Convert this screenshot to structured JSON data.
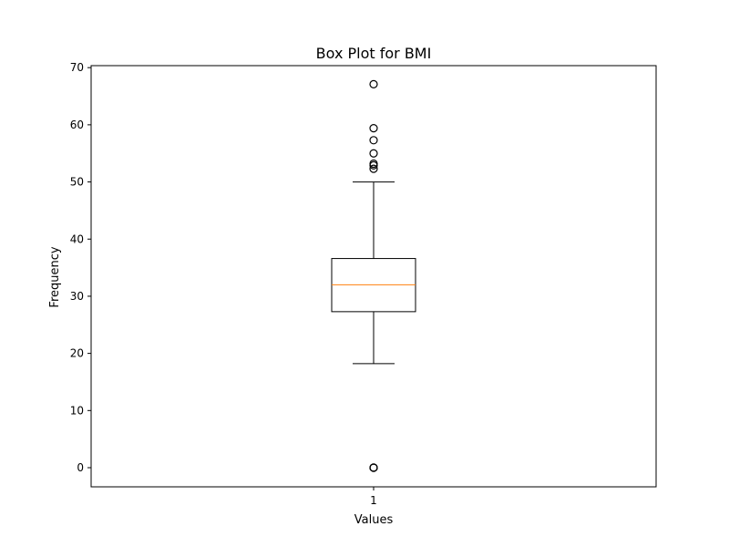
{
  "chart_data": {
    "type": "box",
    "title": "Box Plot for BMI",
    "xlabel": "Values",
    "ylabel": "Frequency",
    "categories": [
      "1"
    ],
    "ylim": [
      -3.35,
      70.35
    ],
    "yticks": [
      0,
      10,
      20,
      30,
      40,
      50,
      60,
      70
    ],
    "grid": false,
    "colors": {
      "box": "#000000",
      "median": "#ff7f0e",
      "background": "#ffffff"
    },
    "boxes": [
      {
        "category": "1",
        "whisker_low": 18.2,
        "q1": 27.3,
        "median": 32.0,
        "q3": 36.6,
        "whisker_high": 50.0,
        "outliers": [
          67.1,
          59.4,
          57.3,
          55.0,
          53.2,
          52.9,
          52.3,
          0,
          0,
          0
        ]
      }
    ]
  }
}
